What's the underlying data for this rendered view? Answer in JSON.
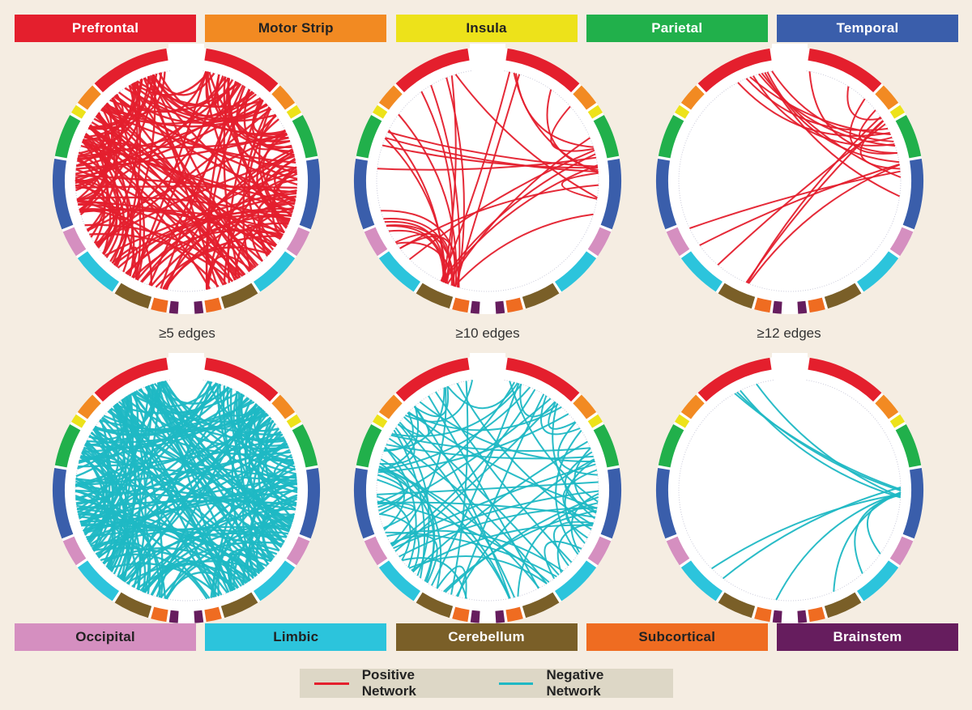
{
  "regions_top": [
    {
      "label": "Prefrontal",
      "color": "#e41f2d",
      "text_color": "#ffffff"
    },
    {
      "label": "Motor Strip",
      "color": "#f28a22",
      "text_color": "#222222"
    },
    {
      "label": "Insula",
      "color": "#ede21a",
      "text_color": "#222222"
    },
    {
      "label": "Parietal",
      "color": "#21b04b",
      "text_color": "#ffffff"
    },
    {
      "label": "Temporal",
      "color": "#3a5eab",
      "text_color": "#ffffff"
    }
  ],
  "regions_bottom": [
    {
      "label": "Occipital",
      "color": "#d58fc0",
      "text_color": "#222222"
    },
    {
      "label": "Limbic",
      "color": "#2cc4dc",
      "text_color": "#222222"
    },
    {
      "label": "Cerebellum",
      "color": "#7a5f28",
      "text_color": "#ffffff"
    },
    {
      "label": "Subcortical",
      "color": "#ef6c21",
      "text_color": "#222222"
    },
    {
      "label": "Brainstem",
      "color": "#661d5e",
      "text_color": "#ffffff"
    }
  ],
  "thresholds": [
    "≥5 edges",
    "≥10 edges",
    "≥12 edges"
  ],
  "legend": {
    "positive_label": "Positive Network",
    "positive_color": "#e41f2d",
    "negative_label": "Negative Network",
    "negative_color": "#1fb8c4"
  },
  "diagrams": [
    {
      "network": "positive",
      "threshold": 5,
      "edge_count": 170
    },
    {
      "network": "positive",
      "threshold": 10,
      "edge_count": 34
    },
    {
      "network": "positive",
      "threshold": 12,
      "edge_count": 20
    },
    {
      "network": "negative",
      "threshold": 5,
      "edge_count": 210
    },
    {
      "network": "negative",
      "threshold": 10,
      "edge_count": 80
    },
    {
      "network": "negative",
      "threshold": 12,
      "edge_count": 10
    }
  ]
}
